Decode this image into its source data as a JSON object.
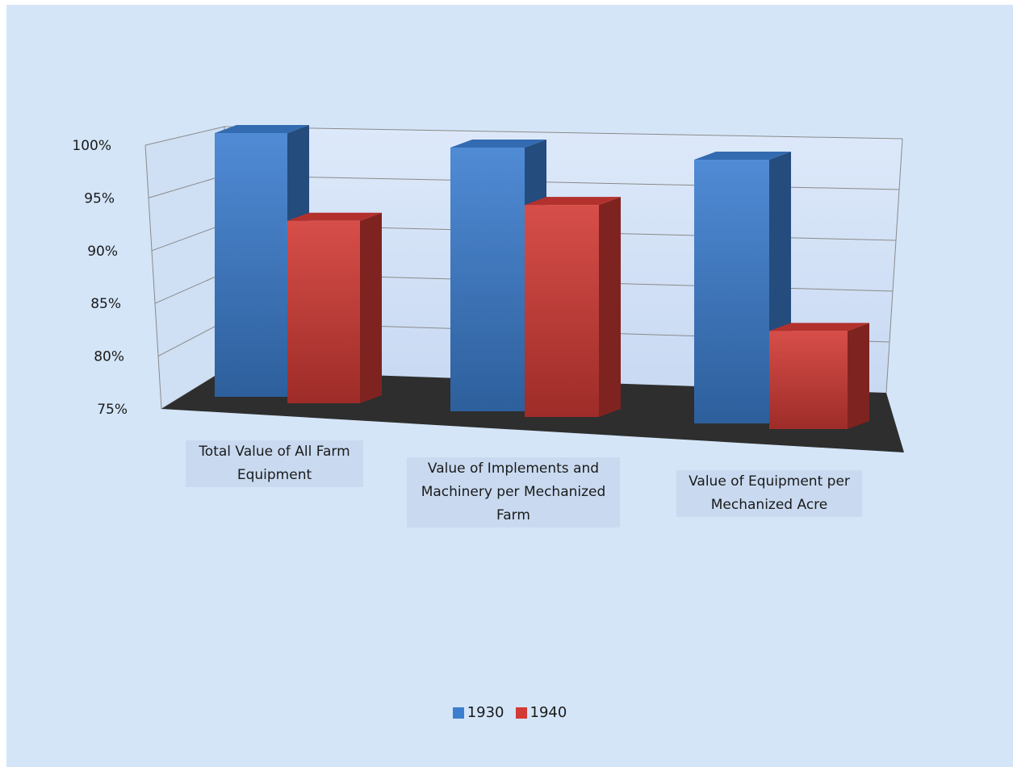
{
  "chart_data": {
    "type": "bar",
    "style": "3d-clustered-column",
    "categories": [
      "Total Value of All Farm Equipment",
      "Value of Implements and Machinery per Mechanized Farm",
      "Value of Equipment per Mechanized Acre"
    ],
    "series": [
      {
        "name": "1930",
        "values": [
          100,
          100,
          100
        ],
        "color": "#3c7ed0"
      },
      {
        "name": "1940",
        "values": [
          92.3,
          95.1,
          84.3
        ],
        "color": "#d33a35"
      }
    ],
    "y_ticks": [
      "75%",
      "80%",
      "85%",
      "90%",
      "95%",
      "100%"
    ],
    "ylim": [
      75,
      100
    ],
    "grid": true,
    "legend_position": "bottom",
    "background_color": "#d4e5f8",
    "floor_color": "#2e2e2e"
  }
}
